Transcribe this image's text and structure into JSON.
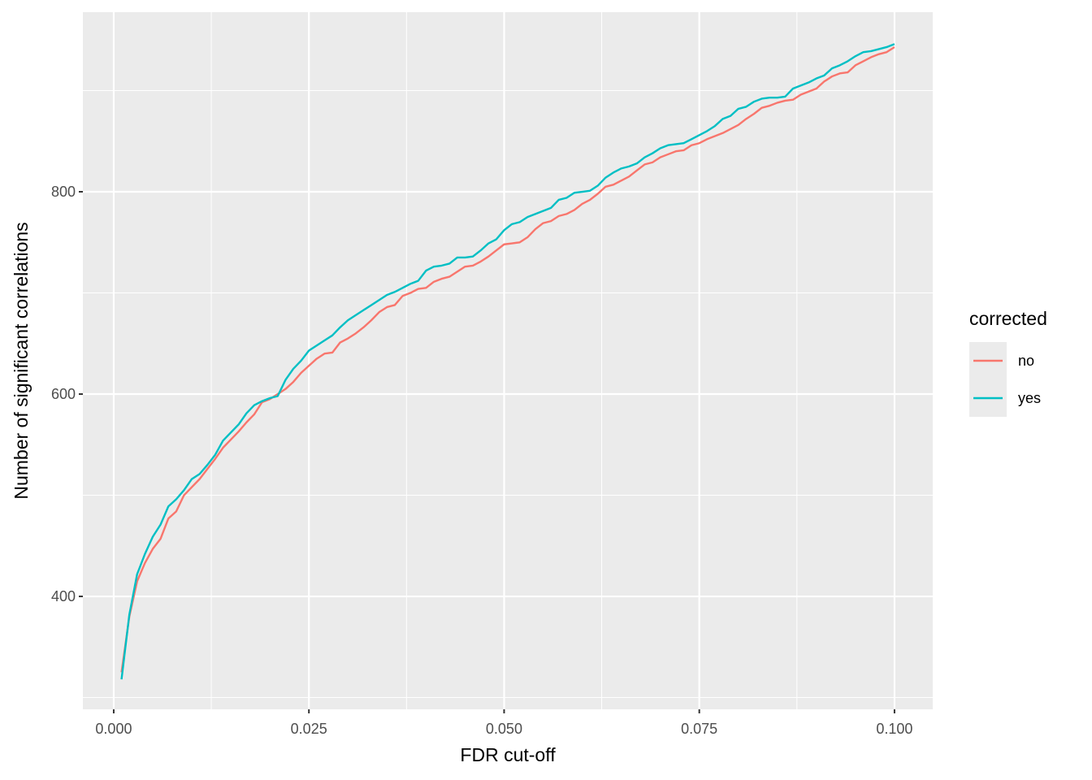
{
  "chart_data": {
    "type": "line",
    "x_label": "FDR cut-off",
    "y_label": "Number of significant correlations",
    "legend_title": "corrected",
    "legend_position": "right",
    "grid": true,
    "x": [
      0.001,
      0.002,
      0.003,
      0.004,
      0.005,
      0.006,
      0.007,
      0.008,
      0.009,
      0.01,
      0.011,
      0.012,
      0.013,
      0.014,
      0.015,
      0.016,
      0.017,
      0.018,
      0.019,
      0.02,
      0.021,
      0.022,
      0.023,
      0.024,
      0.025,
      0.026,
      0.027,
      0.028,
      0.029,
      0.03,
      0.031,
      0.032,
      0.033,
      0.034,
      0.035,
      0.036,
      0.037,
      0.038,
      0.039,
      0.04,
      0.041,
      0.042,
      0.043,
      0.044,
      0.045,
      0.046,
      0.047,
      0.048,
      0.049,
      0.05,
      0.051,
      0.052,
      0.053,
      0.054,
      0.055,
      0.056,
      0.057,
      0.058,
      0.059,
      0.06,
      0.061,
      0.062,
      0.063,
      0.064,
      0.065,
      0.066,
      0.067,
      0.068,
      0.069,
      0.07,
      0.071,
      0.072,
      0.073,
      0.074,
      0.075,
      0.076,
      0.077,
      0.078,
      0.079,
      0.08,
      0.081,
      0.082,
      0.083,
      0.084,
      0.085,
      0.086,
      0.087,
      0.088,
      0.089,
      0.09,
      0.091,
      0.092,
      0.093,
      0.094,
      0.095,
      0.096,
      0.097,
      0.098,
      0.099,
      0.1
    ],
    "series": [
      {
        "name": "no",
        "color": "#F8766D",
        "values": [
          325,
          380,
          415,
          433,
          447,
          457,
          477,
          484,
          500,
          508,
          516,
          526,
          536,
          547,
          555,
          563,
          572,
          580,
          592,
          595,
          600,
          605,
          612,
          621,
          628,
          635,
          640,
          641,
          651,
          655,
          660,
          666,
          673,
          681,
          686,
          688,
          697,
          700,
          704,
          705,
          711,
          714,
          716,
          721,
          726,
          727,
          731,
          736,
          742,
          748,
          749,
          750,
          755,
          763,
          769,
          771,
          776,
          778,
          782,
          788,
          792,
          798,
          805,
          807,
          811,
          815,
          821,
          827,
          829,
          834,
          837,
          840,
          841,
          846,
          848,
          852,
          855,
          858,
          862,
          866,
          872,
          877,
          883,
          885,
          888,
          890,
          891,
          896,
          899,
          902,
          909,
          914,
          917,
          918,
          925,
          929,
          933,
          936,
          938,
          943
        ]
      },
      {
        "name": "yes",
        "color": "#00BFC4",
        "values": [
          318,
          382,
          422,
          442,
          459,
          471,
          489,
          496,
          505,
          516,
          521,
          530,
          540,
          554,
          562,
          570,
          581,
          589,
          593,
          596,
          598,
          614,
          625,
          633,
          643,
          648,
          653,
          658,
          666,
          673,
          678,
          683,
          688,
          693,
          698,
          701,
          705,
          709,
          712,
          722,
          726,
          727,
          729,
          735,
          735,
          736,
          742,
          749,
          753,
          762,
          768,
          770,
          775,
          778,
          781,
          784,
          792,
          794,
          799,
          800,
          801,
          806,
          814,
          819,
          823,
          825,
          828,
          834,
          838,
          843,
          846,
          847,
          848,
          852,
          856,
          860,
          865,
          872,
          875,
          882,
          884,
          889,
          892,
          893,
          893,
          894,
          902,
          905,
          908,
          912,
          915,
          922,
          925,
          929,
          934,
          938,
          939,
          941,
          943,
          946
        ]
      }
    ],
    "xlim": [
      -0.00395,
      0.1049
    ],
    "ylim": [
      288.4,
      977.5
    ],
    "xticks": [
      {
        "value": 0,
        "label": "0.000"
      },
      {
        "value": 0.025,
        "label": "0.025"
      },
      {
        "value": 0.05,
        "label": "0.050"
      },
      {
        "value": 0.075,
        "label": "0.075"
      },
      {
        "value": 0.1,
        "label": "0.100"
      }
    ],
    "yticks": [
      400,
      600,
      800
    ]
  }
}
